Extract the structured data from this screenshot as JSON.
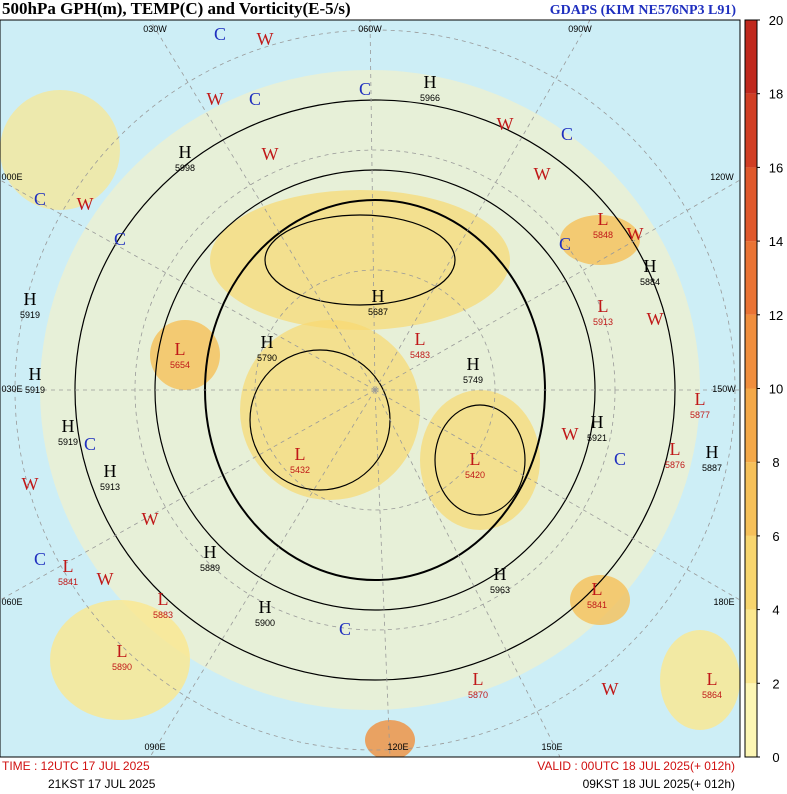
{
  "header": {
    "title": "500hPa GPH(m), TEMP(C) and Vorticity(E-5/s)",
    "model": "GDAPS (KIM NE576NP3 L91)"
  },
  "colorbar": {
    "ticks": [
      0,
      2,
      4,
      6,
      8,
      10,
      12,
      14,
      16,
      18,
      20
    ],
    "colors": [
      "#fdf6b4",
      "#fbe78e",
      "#f8d56e",
      "#f6c059",
      "#f4a848",
      "#f08e3d",
      "#ea7334",
      "#e0582b",
      "#d13e24",
      "#c0281d"
    ]
  },
  "footer": {
    "time": "TIME : 12UTC 17 JUL 2025",
    "time_kst": "21KST 17 JUL 2025",
    "valid": "VALID : 00UTC 18 JUL 2025(+ 012h)",
    "valid_kst": "09KST 18 JUL 2025(+ 012h)"
  },
  "longitudes": [
    "030W",
    "060W",
    "090W",
    "120W",
    "150W",
    "180E",
    "150E",
    "120E",
    "090E",
    "060E",
    "030E",
    "000E"
  ],
  "systems": [
    {
      "label": "H",
      "value": 5966
    },
    {
      "label": "H",
      "value": 5998
    },
    {
      "label": "L",
      "value": 5848
    },
    {
      "label": "H",
      "value": 5884
    },
    {
      "label": "L",
      "value": 5913
    },
    {
      "label": "L",
      "value": 5654
    },
    {
      "label": "H",
      "value": 5790
    },
    {
      "label": "H",
      "value": 5919
    },
    {
      "label": "H",
      "value": 5919
    },
    {
      "label": "H",
      "value": 5913
    },
    {
      "label": "H",
      "value": 5921
    },
    {
      "label": "L",
      "value": 5876
    },
    {
      "label": "H",
      "value": 5887
    },
    {
      "label": "L",
      "value": 5877
    },
    {
      "label": "L",
      "value": 5841
    },
    {
      "label": "H",
      "value": 5889
    },
    {
      "label": "L",
      "value": 5883
    },
    {
      "label": "H",
      "value": 5900
    },
    {
      "label": "L",
      "value": 5890
    },
    {
      "label": "H",
      "value": 5963
    },
    {
      "label": "L",
      "value": 5841
    },
    {
      "label": "L",
      "value": 5870
    },
    {
      "label": "L",
      "value": 5864
    },
    {
      "label": "L",
      "value": 5420
    },
    {
      "label": "L",
      "value": 5432
    },
    {
      "label": "H",
      "value": 5687
    },
    {
      "label": "L",
      "value": 5483
    },
    {
      "label": "H",
      "value": 5749
    },
    {
      "label": "H",
      "value": 5919
    }
  ],
  "markers": [
    "W",
    "C",
    "W",
    "C",
    "W",
    "C",
    "W",
    "W",
    "C",
    "W",
    "C",
    "W",
    "C",
    "W",
    "C",
    "W",
    "C",
    "W",
    "C",
    "W",
    "C",
    "W",
    "C",
    "W"
  ]
}
